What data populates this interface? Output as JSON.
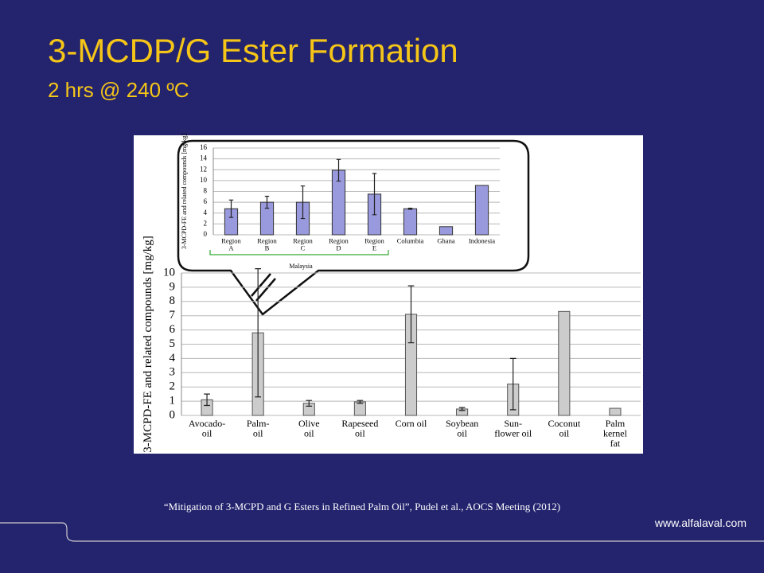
{
  "slide": {
    "title": "3-MCDP/G Ester Formation",
    "subtitle": "2 hrs @ 240 ºC",
    "citation": "“Mitigation of 3-MCPD and G Esters in Refined Palm Oil”,  Pudel et al.,  AOCS Meeting (2012)",
    "url": "www.alfalaval.com"
  },
  "chart_data": [
    {
      "type": "bar",
      "ylabel": "3-MCPD-FE and related compounds [mg/kg]",
      "categories": [
        "Avocado-\noil",
        "Palm-\noil",
        "Olive\noil",
        "Rapeseed\noil",
        "Corn oil",
        "Soybean\noil",
        "Sun-\nflower oil",
        "Coconut\noil",
        "Palm\nkernel\nfat"
      ],
      "values": [
        1.1,
        5.8,
        0.85,
        0.95,
        7.1,
        0.45,
        2.2,
        7.3,
        0.5
      ],
      "errors": [
        0.4,
        4.5,
        0.2,
        0.1,
        2.0,
        0.1,
        1.8,
        null,
        null
      ],
      "color": "#cccccc",
      "ylim": [
        0,
        10
      ],
      "yticks": [
        0,
        1,
        2,
        3,
        4,
        5,
        6,
        7,
        8,
        9,
        10
      ],
      "grid": true
    },
    {
      "type": "bar",
      "ylabel": "3-MCPD-FE and related compounds [mg/kg]",
      "categories": [
        "Region\nA",
        "Region\nB",
        "Region\nC",
        "Region\nD",
        "Region\nE",
        "Columbia",
        "Ghana",
        "Indonesia"
      ],
      "values": [
        4.8,
        6.0,
        6.0,
        11.9,
        7.5,
        4.8,
        1.5,
        9.1
      ],
      "errors": [
        1.6,
        1.1,
        3.0,
        2.0,
        3.8,
        0.1,
        null,
        null
      ],
      "group_label": "Malaysia",
      "color": "#9999dd",
      "ylim": [
        0,
        16
      ],
      "yticks": [
        0,
        2,
        4,
        6,
        8,
        10,
        12,
        14,
        16
      ],
      "grid": true
    }
  ]
}
